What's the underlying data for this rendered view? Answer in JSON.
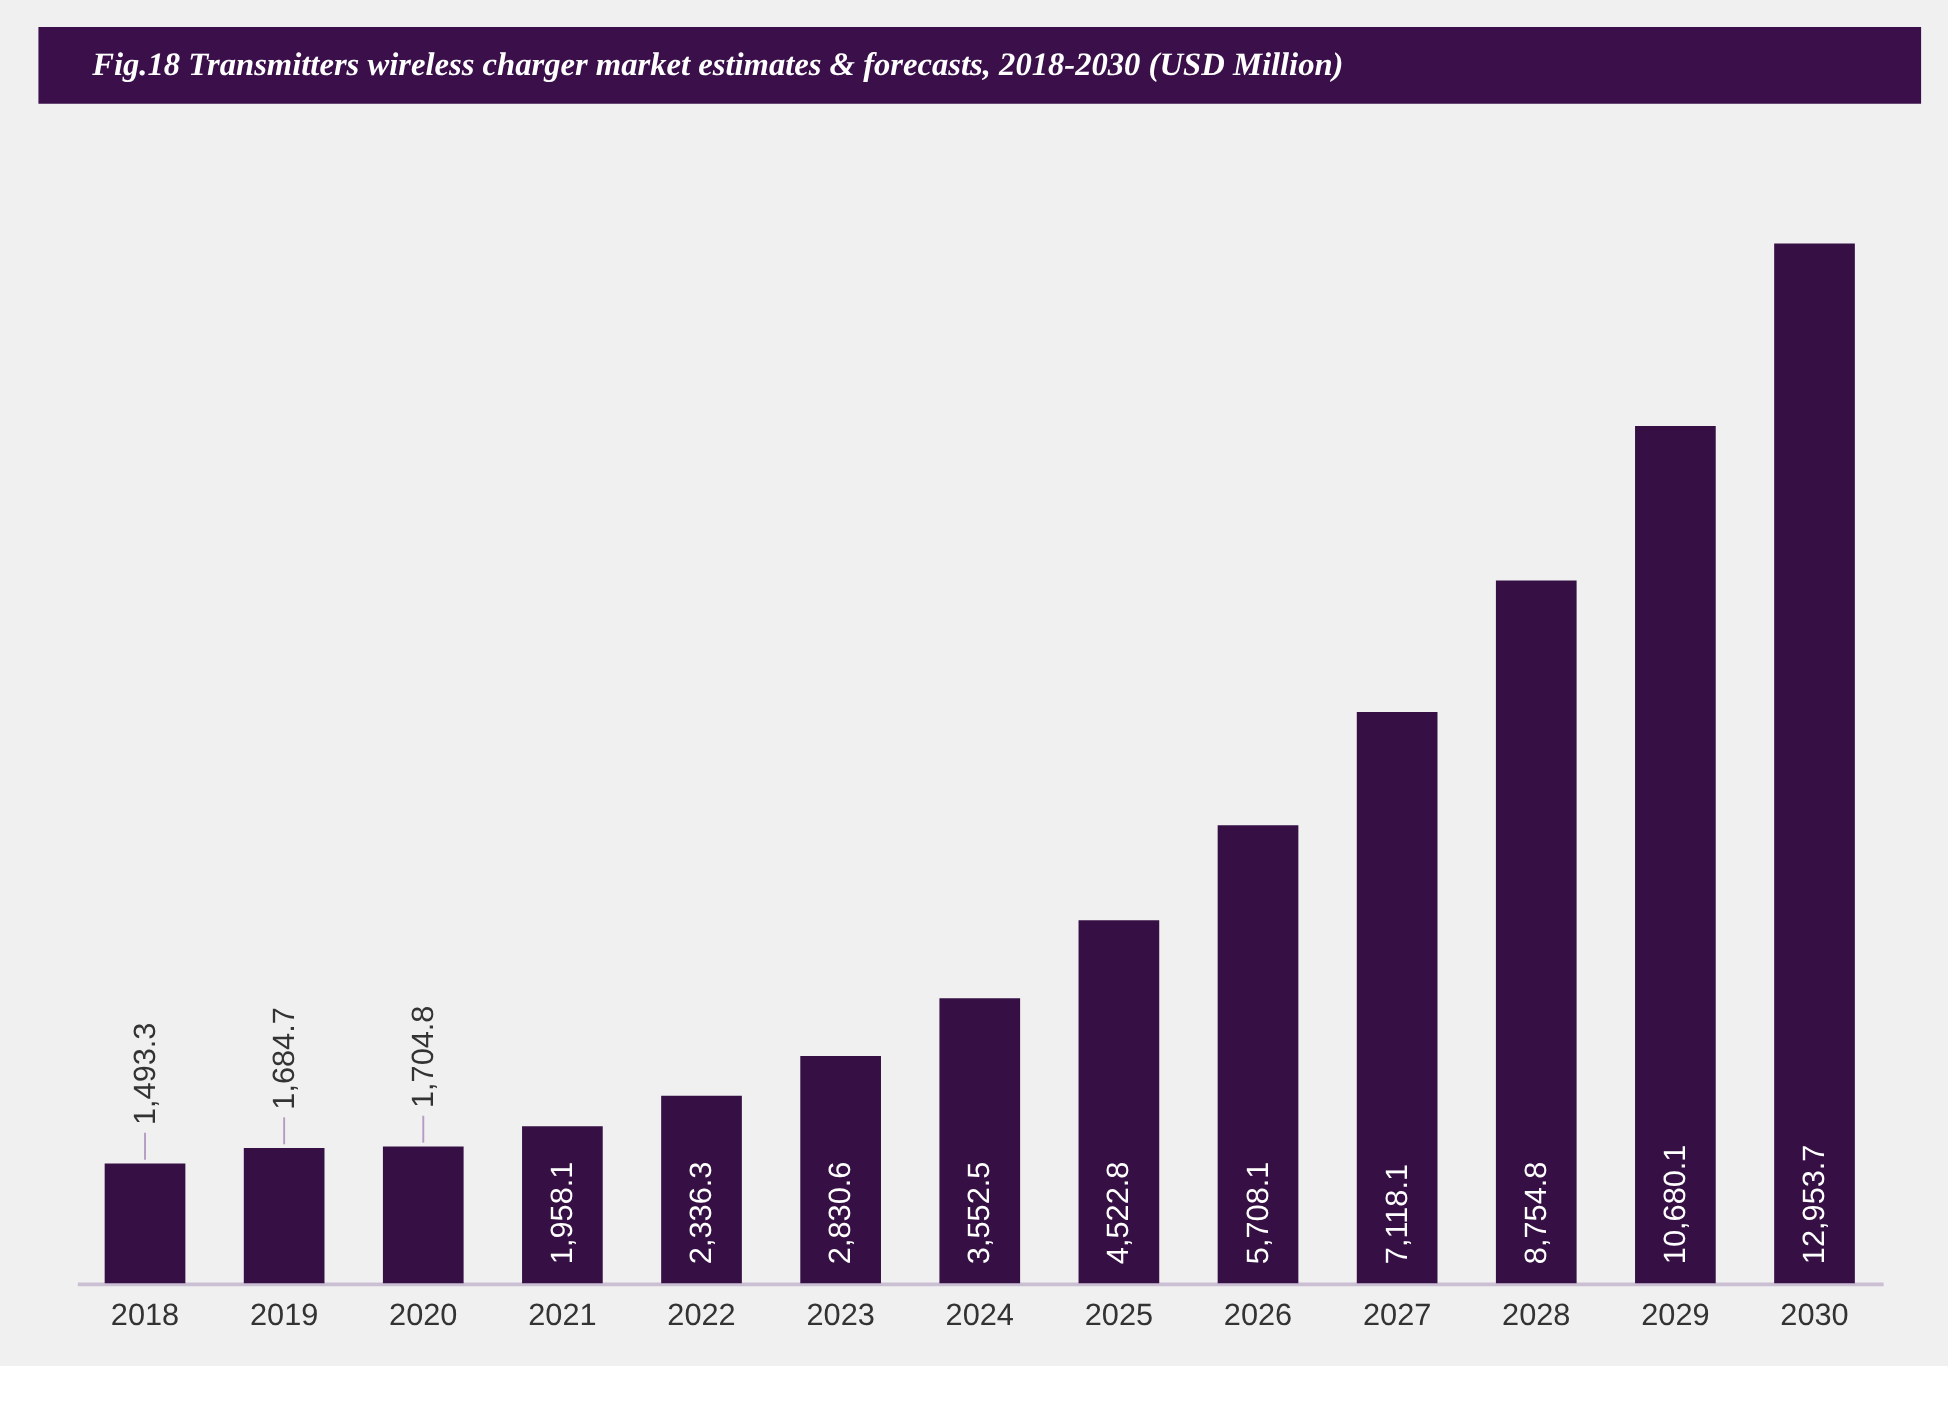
{
  "chart_data": {
    "type": "bar",
    "title": "Fig.18  Transmitters wireless charger market estimates & forecasts, 2018-2030 (USD Million)",
    "categories": [
      "2018",
      "2019",
      "2020",
      "2021",
      "2022",
      "2023",
      "2024",
      "2025",
      "2026",
      "2027",
      "2028",
      "2029",
      "2030"
    ],
    "values": [
      1493.3,
      1684.7,
      1704.8,
      1958.1,
      2336.3,
      2830.6,
      3552.5,
      4522.8,
      5708.1,
      7118.1,
      8754.8,
      10680.1,
      12953.7
    ],
    "value_labels": [
      "1,493.3",
      "1,684.7",
      "1,704.8",
      "1,958.1",
      "2,336.3",
      "2,830.6",
      "3,552.5",
      "4,522.8",
      "5,708.1",
      "7,118.1",
      "8,754.8",
      "10,680.1",
      "12,953.7"
    ],
    "color": "#361044",
    "tick_labels": "x"
  }
}
